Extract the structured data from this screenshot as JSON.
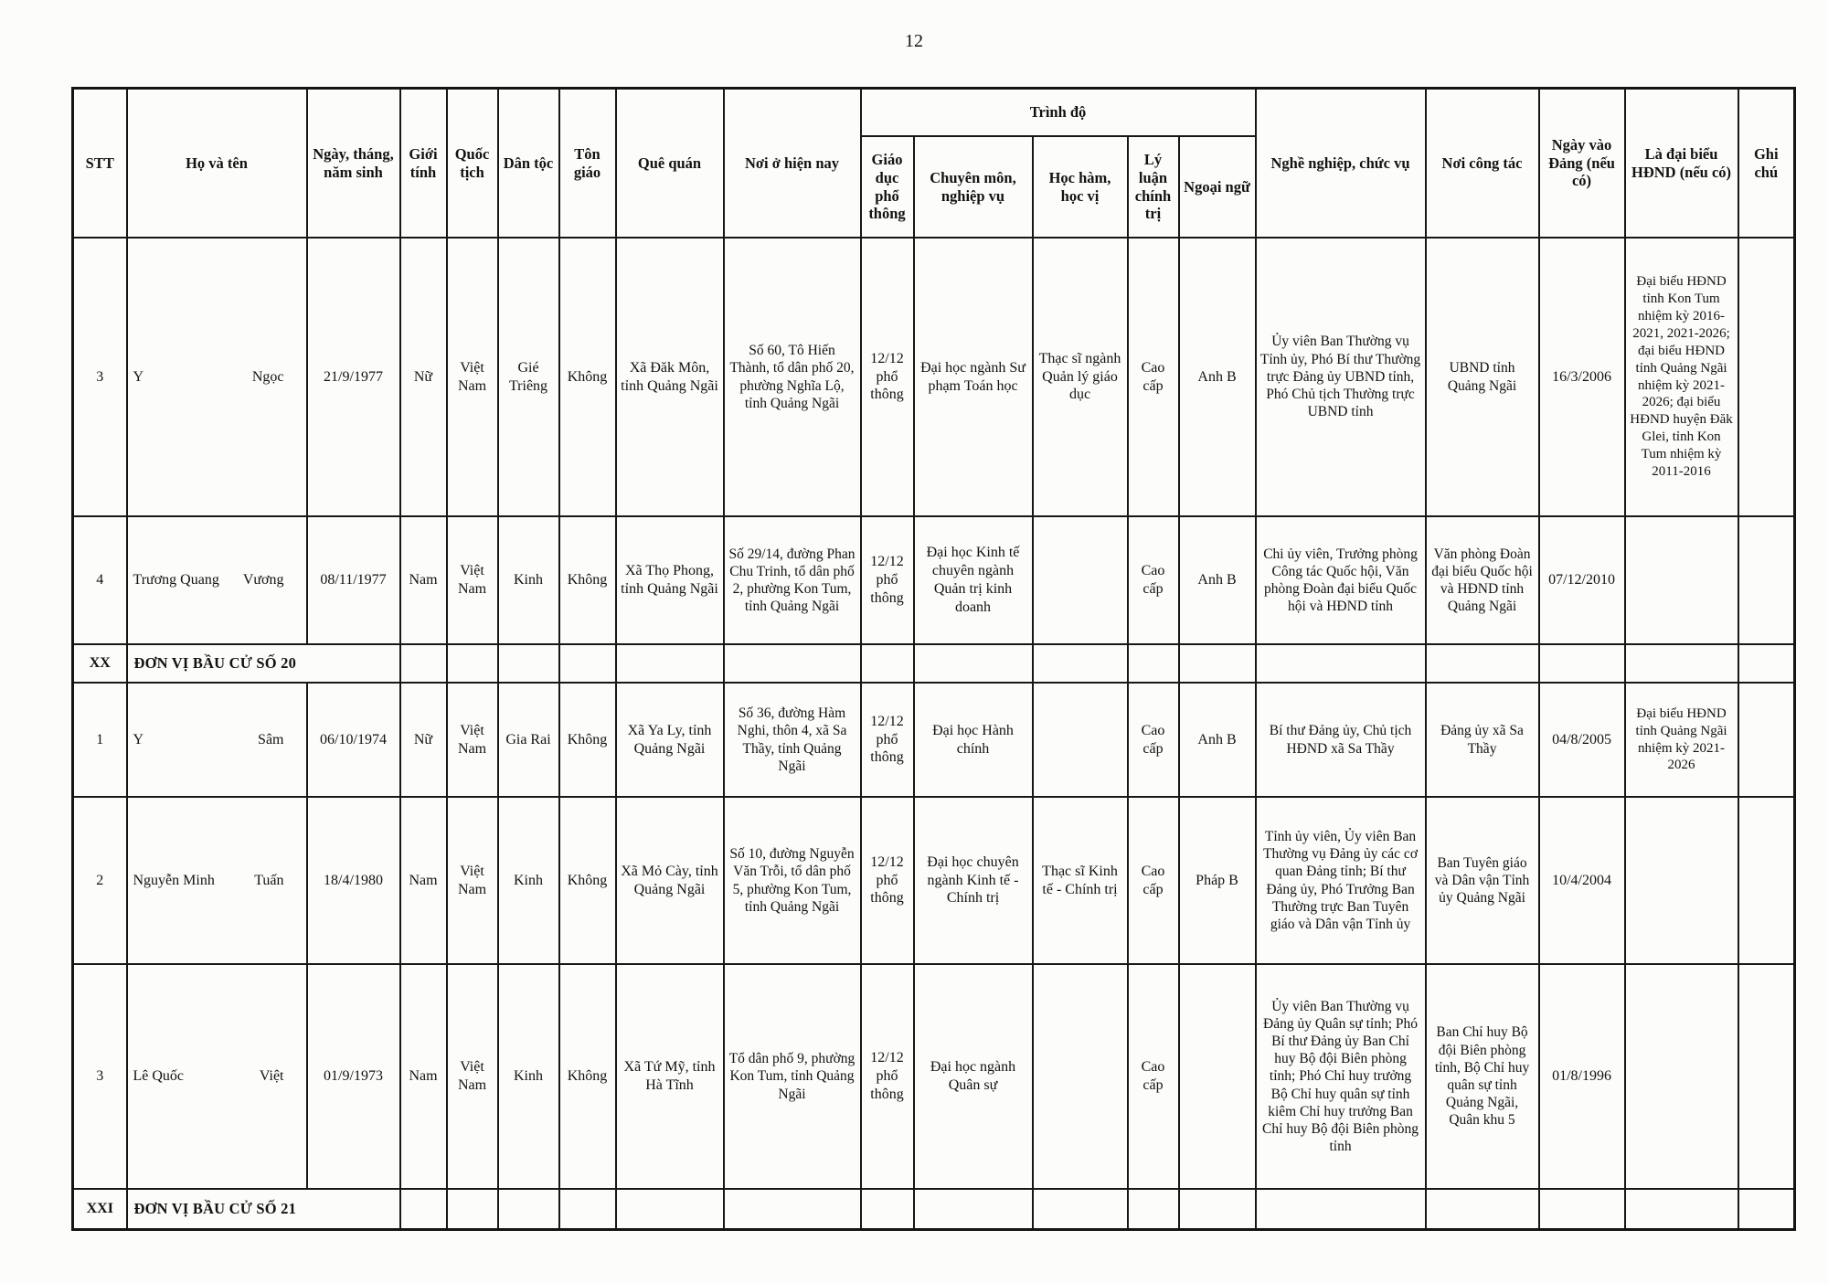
{
  "page": {
    "number": "12"
  },
  "table": {
    "columns": {
      "stt": "STT",
      "ho_va_ten": "Họ và tên",
      "ngay_sinh": "Ngày, tháng, năm sinh",
      "gioi_tinh": "Giới tính",
      "quoc_tich": "Quốc tịch",
      "dan_toc": "Dân tộc",
      "ton_giao": "Tôn giáo",
      "que_quan": "Quê quán",
      "noi_o": "Nơi ở hiện nay",
      "trinh_do": "Trình độ",
      "giao_duc": "Giáo dục phổ thông",
      "chuyen_mon": "Chuyên môn, nghiệp vụ",
      "hoc_ham": "Học hàm, học vị",
      "ly_luan": "Lý luận chính trị",
      "ngoai_ngu": "Ngoại ngữ",
      "nghe_nghiep": "Nghề nghiệp, chức vụ",
      "noi_cong_tac": "Nơi công tác",
      "ngay_vao_dang": "Ngày vào Đảng (nếu có)",
      "la_dai_bieu": "Là đại biểu HĐND (nếu có)",
      "ghi_chu": "Ghi chú"
    },
    "rows": [
      {
        "type": "person",
        "stt": "3",
        "family": "Y",
        "given": "Ngọc",
        "dob": "21/9/1977",
        "gender": "Nữ",
        "nationality": "Việt Nam",
        "ethnicity": "Gié Triêng",
        "religion": "Không",
        "hometown": "Xã Đăk Môn, tỉnh Quảng Ngãi",
        "residence": "Số 60, Tô Hiến Thành, tổ dân phố 20, phường Nghĩa Lộ, tỉnh Quảng Ngãi",
        "education": "12/12 phổ thông",
        "professional": "Đại học ngành Sư phạm Toán học",
        "academic": "Thạc sĩ ngành Quản lý giáo dục",
        "politics": "Cao cấp",
        "language": "Anh B",
        "occupation": "Ủy viên Ban Thường vụ Tỉnh ủy, Phó Bí thư Thường trực Đảng ủy UBND tỉnh, Phó Chủ tịch Thường trực UBND tỉnh",
        "workplace": "UBND tỉnh Quảng Ngãi",
        "party_date": "16/3/2006",
        "deputy": "Đại biểu HĐND tỉnh Kon Tum nhiệm kỳ 2016-2021, 2021-2026; đại biểu HĐND tỉnh Quảng Ngãi nhiệm kỳ 2021-2026; đại biểu HĐND huyện Đăk Glei, tỉnh Kon Tum nhiệm kỳ 2011-2016",
        "note": ""
      },
      {
        "type": "person",
        "stt": "4",
        "family": "Trương Quang",
        "given": "Vương",
        "dob": "08/11/1977",
        "gender": "Nam",
        "nationality": "Việt Nam",
        "ethnicity": "Kinh",
        "religion": "Không",
        "hometown": "Xã Thọ Phong, tỉnh Quảng Ngãi",
        "residence": "Số 29/14, đường Phan Chu Trinh, tổ dân phố 2, phường Kon Tum, tỉnh Quảng Ngãi",
        "education": "12/12 phổ thông",
        "professional": "Đại học Kinh tế chuyên ngành Quản trị kinh doanh",
        "academic": "",
        "politics": "Cao cấp",
        "language": "Anh B",
        "occupation": "Chi ủy viên, Trưởng phòng Công tác Quốc hội, Văn phòng Đoàn đại biểu Quốc hội và HĐND tỉnh",
        "workplace": "Văn phòng Đoàn đại biểu Quốc hội và HĐND tỉnh Quảng Ngãi",
        "party_date": "07/12/2010",
        "deputy": "",
        "note": ""
      },
      {
        "type": "section",
        "stt": "XX",
        "label": "ĐƠN VỊ BẦU CỬ SỐ 20"
      },
      {
        "type": "person",
        "stt": "1",
        "family": "Y",
        "given": "Sâm",
        "dob": "06/10/1974",
        "gender": "Nữ",
        "nationality": "Việt Nam",
        "ethnicity": "Gia Rai",
        "religion": "Không",
        "hometown": "Xã Ya Ly, tỉnh Quảng Ngãi",
        "residence": "Số 36, đường Hàm Nghi, thôn 4, xã Sa Thầy, tỉnh Quảng Ngãi",
        "education": "12/12 phổ thông",
        "professional": "Đại học Hành chính",
        "academic": "",
        "politics": "Cao cấp",
        "language": "Anh B",
        "occupation": "Bí thư Đảng ủy, Chủ tịch HĐND xã Sa Thầy",
        "workplace": "Đảng ủy xã Sa Thầy",
        "party_date": "04/8/2005",
        "deputy": "Đại biểu HĐND tỉnh Quảng Ngãi nhiệm kỳ 2021-2026",
        "note": ""
      },
      {
        "type": "person",
        "stt": "2",
        "family": "Nguyễn Minh",
        "given": "Tuấn",
        "dob": "18/4/1980",
        "gender": "Nam",
        "nationality": "Việt Nam",
        "ethnicity": "Kinh",
        "religion": "Không",
        "hometown": "Xã Mỏ Cày, tỉnh Quảng Ngãi",
        "residence": "Số 10, đường Nguyễn Văn Trỗi, tổ dân phố 5, phường Kon Tum, tỉnh Quảng Ngãi",
        "education": "12/12 phổ thông",
        "professional": "Đại học chuyên ngành Kinh tế - Chính trị",
        "academic": "Thạc sĩ Kinh tế - Chính trị",
        "politics": "Cao cấp",
        "language": "Pháp B",
        "occupation": "Tỉnh ủy viên, Ủy viên Ban Thường vụ Đảng ủy các cơ quan Đảng tỉnh; Bí thư Đảng ủy, Phó Trưởng Ban Thường trực Ban Tuyên giáo và Dân vận Tỉnh ủy",
        "workplace": "Ban Tuyên giáo và Dân vận Tỉnh ủy Quảng Ngãi",
        "party_date": "10/4/2004",
        "deputy": "",
        "note": ""
      },
      {
        "type": "person",
        "stt": "3",
        "family": "Lê Quốc",
        "given": "Việt",
        "dob": "01/9/1973",
        "gender": "Nam",
        "nationality": "Việt Nam",
        "ethnicity": "Kinh",
        "religion": "Không",
        "hometown": "Xã Tứ Mỹ, tỉnh Hà Tĩnh",
        "residence": "Tổ dân phố 9, phường Kon Tum, tỉnh Quảng Ngãi",
        "education": "12/12 phổ thông",
        "professional": "Đại học ngành Quân sự",
        "academic": "",
        "politics": "Cao cấp",
        "language": "",
        "occupation": "Ủy viên Ban Thường vụ Đảng ủy Quân sự tỉnh; Phó Bí thư Đảng ủy Ban Chỉ huy Bộ đội Biên phòng tỉnh; Phó Chỉ huy trưởng Bộ Chỉ huy quân sự tỉnh kiêm Chỉ huy trưởng Ban Chỉ huy Bộ đội Biên phòng tỉnh",
        "workplace": "Ban Chỉ huy Bộ đội Biên phòng tỉnh, Bộ Chỉ huy quân sự tỉnh Quảng Ngãi, Quân khu 5",
        "party_date": "01/8/1996",
        "deputy": "",
        "note": ""
      },
      {
        "type": "section",
        "stt": "XXI",
        "label": "ĐƠN VỊ BẦU CỬ SỐ 21"
      }
    ]
  }
}
